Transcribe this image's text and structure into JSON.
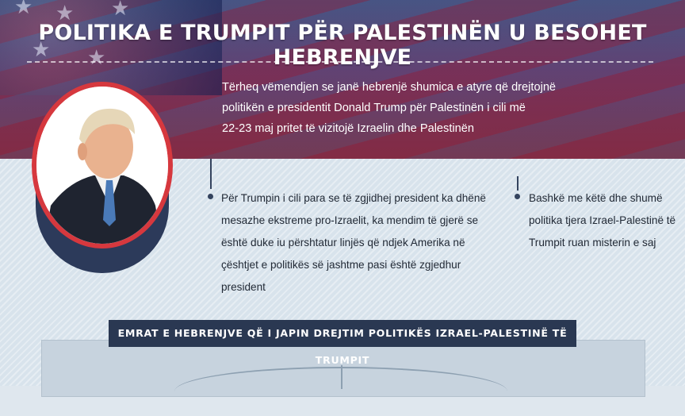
{
  "header": {
    "title": "POLITIKA E TRUMPIT PËR PALESTINËN U BESOHET HEBRENJVE",
    "intro_lines": [
      "Tërheq vëmendjen se janë hebrenjë shumica e atyre që drejtojnë",
      "politikën e presidentit Donald Trump për Palestinën i cili më",
      "22-23 maj pritet të vizitojë Izraelin dhe Palestinën"
    ]
  },
  "columns": [
    {
      "lines": [
        "Për Trumpin i cili para se të zgjidhej president ka dhënë",
        "mesazhe ekstreme pro-Izraelit, ka mendim të gjerë se",
        "është duke iu përshtatur linjës që ndjek Amerika në",
        "çështjet e politikës së jashtme pasi është zgjedhur",
        "president"
      ]
    },
    {
      "lines": [
        "Bashkë me këtë dhe shumë",
        "politika tjera  Izrael-Palestinë të",
        "Trumpit ruan misterin e saj"
      ]
    }
  ],
  "section_banner": "EMRAT E HEBRENJVE QË I JAPIN DREJTIM POLITIKËS IZRAEL-PALESTINË TË TRUMPIT",
  "colors": {
    "accent_red": "#d6383e",
    "navy": "#2a3852",
    "pale_blue": "#d8e3ec"
  },
  "icons": [
    "star-icon",
    "portrait-photo"
  ]
}
